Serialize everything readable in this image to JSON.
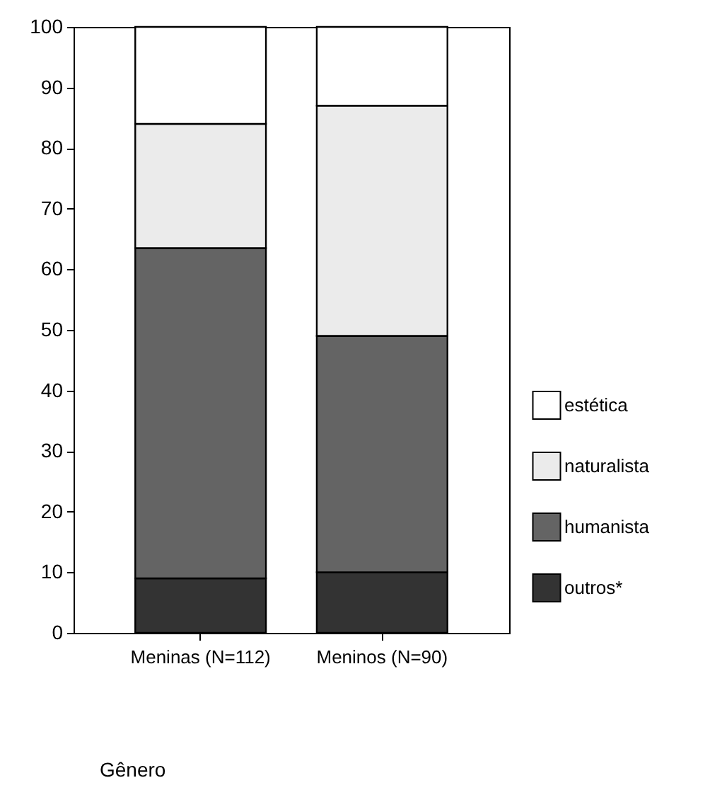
{
  "chart_data": {
    "type": "bar",
    "stacked": true,
    "xlabel": "Gênero",
    "categories": [
      "Meninas (N=112)",
      "Meninos (N=90)"
    ],
    "series": [
      {
        "name": "outros*",
        "color": "#333333",
        "values": [
          9,
          10
        ]
      },
      {
        "name": "humanista",
        "color": "#646464",
        "values": [
          54.5,
          39
        ]
      },
      {
        "name": "naturalista",
        "color": "#ebebeb",
        "values": [
          20.5,
          38
        ]
      },
      {
        "name": "estética",
        "color": "#ffffff",
        "values": [
          16,
          13
        ]
      }
    ],
    "ylim": [
      0,
      100
    ],
    "yticks": [
      0,
      10,
      20,
      30,
      40,
      50,
      60,
      70,
      80,
      90,
      100
    ],
    "legend": "right",
    "grid": false
  }
}
